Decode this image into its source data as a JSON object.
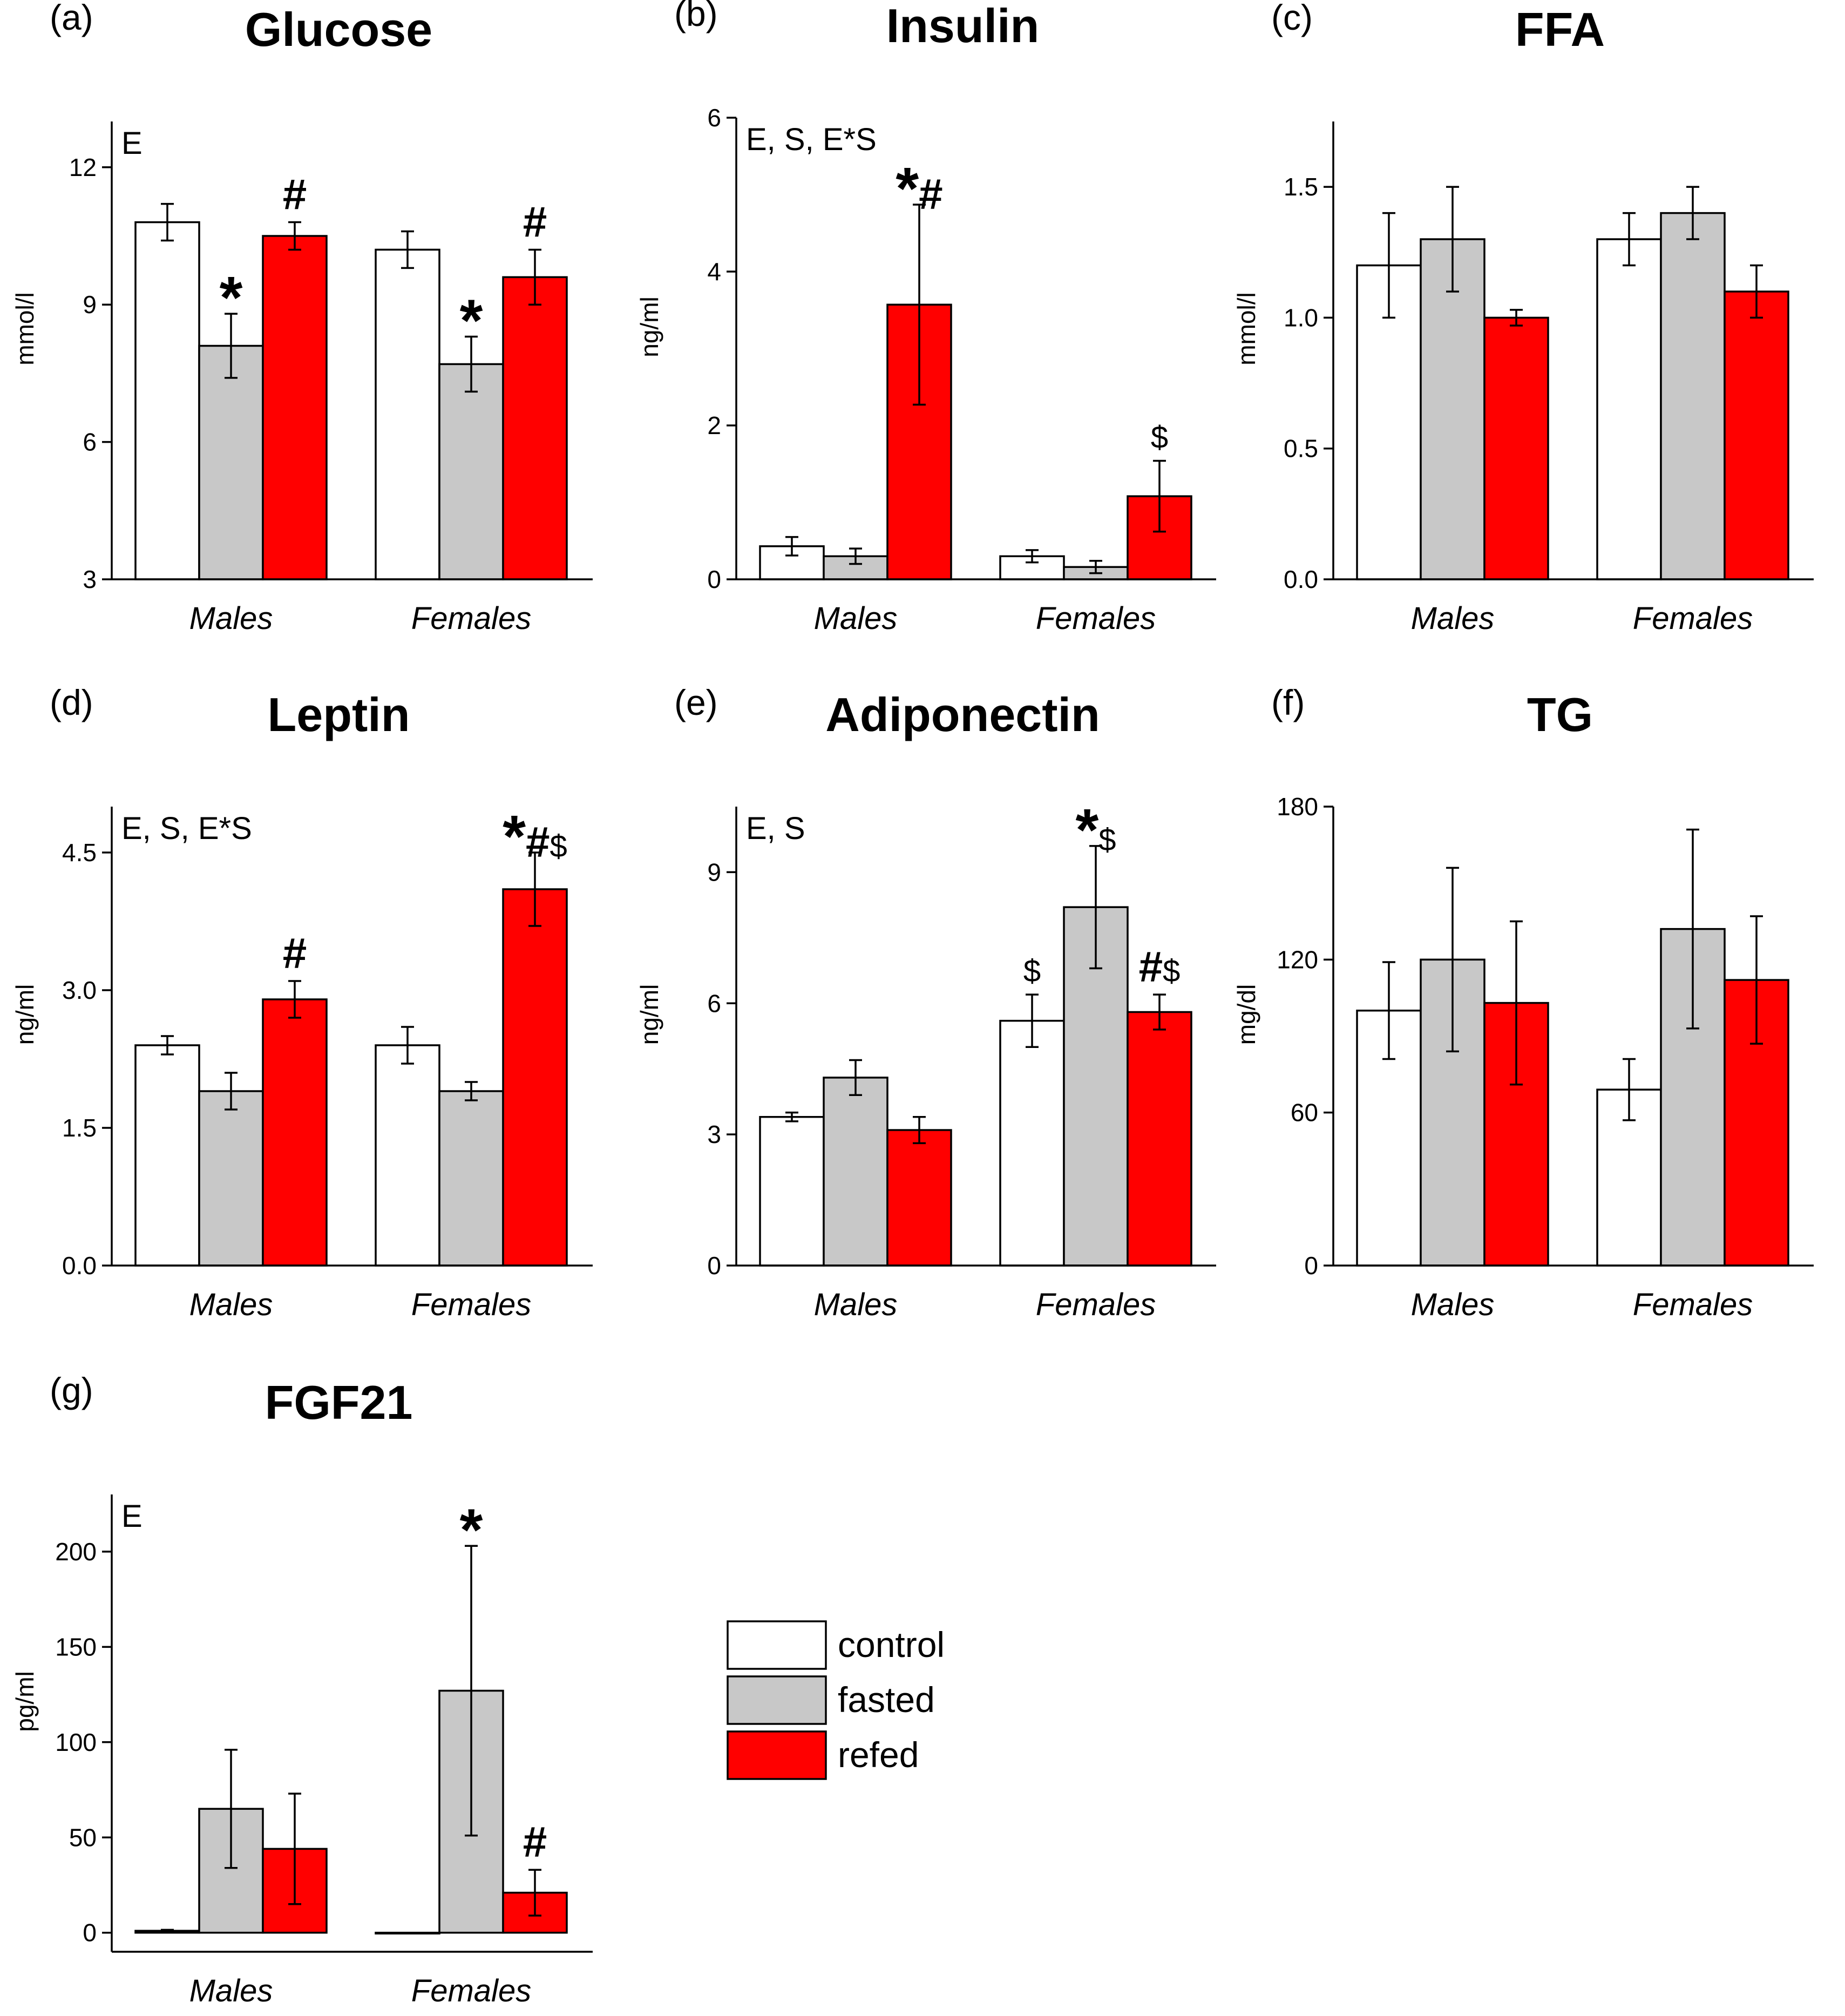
{
  "figure": {
    "colors": {
      "control": "#ffffff",
      "fasted": "#c8c8c8",
      "refed": "#ff0000",
      "axis": "#000000"
    },
    "legend": {
      "items": [
        {
          "key": "control",
          "label": "control"
        },
        {
          "key": "fasted",
          "label": "fasted"
        },
        {
          "key": "refed",
          "label": "refed"
        }
      ]
    }
  },
  "chart_data": [
    {
      "panel": "(a)",
      "title": "Glucose",
      "type": "bar",
      "ylabel": "mmol/l",
      "ylim": [
        3,
        13
      ],
      "yticks": [
        "3",
        "6",
        "9",
        "12"
      ],
      "yticks_v": [
        3,
        6,
        9,
        12
      ],
      "stats": "E",
      "categories": [
        "Males",
        "Females"
      ],
      "series": [
        {
          "name": "control",
          "values": [
            10.8,
            10.2
          ],
          "errors": [
            0.4,
            0.4
          ]
        },
        {
          "name": "fasted",
          "values": [
            8.1,
            7.7
          ],
          "errors": [
            0.7,
            0.6
          ]
        },
        {
          "name": "refed",
          "values": [
            10.5,
            9.6
          ],
          "errors": [
            0.3,
            0.6
          ]
        }
      ],
      "annotations": [
        {
          "category": 0,
          "series": 1,
          "text": "*"
        },
        {
          "category": 0,
          "series": 2,
          "text": "#"
        },
        {
          "category": 1,
          "series": 1,
          "text": "*"
        },
        {
          "category": 1,
          "series": 2,
          "text": "#"
        }
      ]
    },
    {
      "panel": "(b)",
      "title": "Insulin",
      "type": "bar",
      "ylabel": "ng/ml",
      "ylim": [
        0,
        6
      ],
      "yticks": [
        "0",
        "2",
        "4",
        "6"
      ],
      "yticks_v": [
        0,
        2,
        4,
        6
      ],
      "stats": "E, S, E*S",
      "categories": [
        "Males",
        "Females"
      ],
      "series": [
        {
          "name": "control",
          "values": [
            0.43,
            0.3
          ],
          "errors": [
            0.12,
            0.08
          ]
        },
        {
          "name": "fasted",
          "values": [
            0.3,
            0.16
          ],
          "errors": [
            0.1,
            0.08
          ]
        },
        {
          "name": "refed",
          "values": [
            3.57,
            1.08
          ],
          "errors": [
            1.3,
            0.46
          ]
        }
      ],
      "annotations": [
        {
          "category": 0,
          "series": 2,
          "text": "*#"
        },
        {
          "category": 1,
          "series": 2,
          "text": "$"
        }
      ]
    },
    {
      "panel": "(c)",
      "title": "FFA",
      "type": "bar",
      "ylabel": "mmol/l",
      "ylim": [
        0,
        1.75
      ],
      "yticks": [
        "0.0",
        "0.5",
        "1.0",
        "1.5"
      ],
      "yticks_v": [
        0,
        0.5,
        1.0,
        1.5
      ],
      "stats": "",
      "categories": [
        "Males",
        "Females"
      ],
      "series": [
        {
          "name": "control",
          "values": [
            1.2,
            1.3
          ],
          "errors": [
            0.2,
            0.1
          ]
        },
        {
          "name": "fasted",
          "values": [
            1.3,
            1.4
          ],
          "errors": [
            0.2,
            0.1
          ]
        },
        {
          "name": "refed",
          "values": [
            1.0,
            1.1
          ],
          "errors": [
            0.03,
            0.1
          ]
        }
      ],
      "annotations": []
    },
    {
      "panel": "(d)",
      "title": "Leptin",
      "type": "bar",
      "ylabel": "ng/ml",
      "ylim": [
        0,
        5
      ],
      "yticks": [
        "0.0",
        "1.5",
        "3.0",
        "4.5"
      ],
      "yticks_v": [
        0,
        1.5,
        3.0,
        4.5
      ],
      "stats": "E, S, E*S",
      "categories": [
        "Males",
        "Females"
      ],
      "series": [
        {
          "name": "control",
          "values": [
            2.4,
            2.4
          ],
          "errors": [
            0.1,
            0.2
          ]
        },
        {
          "name": "fasted",
          "values": [
            1.9,
            1.9
          ],
          "errors": [
            0.2,
            0.1
          ]
        },
        {
          "name": "refed",
          "values": [
            2.9,
            4.1
          ],
          "errors": [
            0.2,
            0.4
          ]
        }
      ],
      "annotations": [
        {
          "category": 0,
          "series": 2,
          "text": "#"
        },
        {
          "category": 1,
          "series": 2,
          "text": "*#$"
        }
      ]
    },
    {
      "panel": "(e)",
      "title": "Adiponectin",
      "type": "bar",
      "ylabel": "ng/ml",
      "ylim": [
        0,
        10.5
      ],
      "yticks": [
        "0",
        "3",
        "6",
        "9"
      ],
      "yticks_v": [
        0,
        3,
        6,
        9
      ],
      "stats": "E, S",
      "categories": [
        "Males",
        "Females"
      ],
      "series": [
        {
          "name": "control",
          "values": [
            3.4,
            5.6
          ],
          "errors": [
            0.1,
            0.6
          ]
        },
        {
          "name": "fasted",
          "values": [
            4.3,
            8.2
          ],
          "errors": [
            0.4,
            1.4
          ]
        },
        {
          "name": "refed",
          "values": [
            3.1,
            5.8
          ],
          "errors": [
            0.3,
            0.4
          ]
        }
      ],
      "annotations": [
        {
          "category": 1,
          "series": 0,
          "text": "$"
        },
        {
          "category": 1,
          "series": 1,
          "text": "*$"
        },
        {
          "category": 1,
          "series": 2,
          "text": "#$"
        }
      ]
    },
    {
      "panel": "(f)",
      "title": "TG",
      "type": "bar",
      "ylabel": "mg/dl",
      "ylim": [
        0,
        180
      ],
      "yticks": [
        "0",
        "60",
        "120",
        "180"
      ],
      "yticks_v": [
        0,
        60,
        120,
        180
      ],
      "stats": "",
      "categories": [
        "Males",
        "Females"
      ],
      "series": [
        {
          "name": "control",
          "values": [
            100,
            69
          ],
          "errors": [
            19,
            12
          ]
        },
        {
          "name": "fasted",
          "values": [
            120,
            132
          ],
          "errors": [
            36,
            39
          ]
        },
        {
          "name": "refed",
          "values": [
            103,
            112
          ],
          "errors": [
            32,
            25
          ]
        }
      ],
      "annotations": []
    },
    {
      "panel": "(g)",
      "title": "FGF21",
      "type": "bar",
      "ylabel": "pg/ml",
      "ylim": [
        -10,
        230
      ],
      "yticks": [
        "0",
        "50",
        "100",
        "150",
        "200"
      ],
      "yticks_v": [
        0,
        50,
        100,
        150,
        200
      ],
      "stats": "E",
      "categories": [
        "Males",
        "Females"
      ],
      "series": [
        {
          "name": "control",
          "values": [
            1,
            0
          ],
          "errors": [
            0.5,
            0
          ]
        },
        {
          "name": "fasted",
          "values": [
            65,
            127
          ],
          "errors": [
            31,
            76
          ]
        },
        {
          "name": "refed",
          "values": [
            44,
            21
          ],
          "errors": [
            29,
            12
          ]
        }
      ],
      "annotations": [
        {
          "category": 1,
          "series": 1,
          "text": "*"
        },
        {
          "category": 1,
          "series": 2,
          "text": "#"
        }
      ]
    }
  ]
}
